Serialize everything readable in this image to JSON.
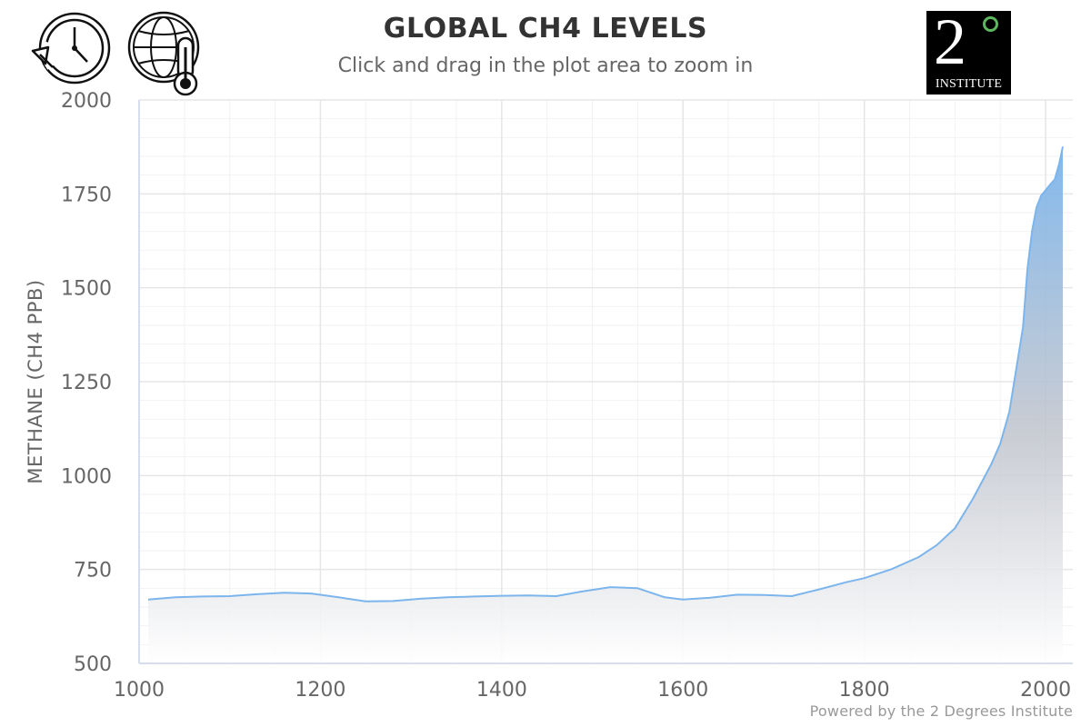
{
  "header": {
    "title": "GLOBAL CH4 LEVELS",
    "subtitle": "Click and drag in the plot area to zoom in"
  },
  "icons": {
    "history": "history-clock-icon",
    "climate": "globe-thermometer-icon"
  },
  "logo": {
    "digit": "2",
    "word": "INSTITUTE"
  },
  "footer": {
    "credit": "Powered by the 2 Degrees Institute"
  },
  "colors": {
    "line": "#7cb5ec",
    "grid_major": "#e6e6e6",
    "grid_minor": "#f2f2f2",
    "axis_text": "#666666",
    "fill_top": "#7cb5ec",
    "fill_bottom": "#ffffff"
  },
  "chart_data": {
    "type": "area",
    "title": "GLOBAL CH4 LEVELS",
    "subtitle": "Click and drag in the plot area to zoom in",
    "xlabel": "",
    "ylabel": "METHANE (CH4 PPB)",
    "xlim": [
      1000,
      2030
    ],
    "ylim": [
      500,
      2000
    ],
    "xticks": [
      1000,
      1200,
      1400,
      1600,
      1800,
      2000
    ],
    "yticks": [
      500,
      750,
      1000,
      1250,
      1500,
      1750,
      2000
    ],
    "grid": true,
    "legend": "none",
    "series": [
      {
        "x": [
          1010,
          1040,
          1070,
          1100,
          1130,
          1160,
          1190,
          1220,
          1250,
          1280,
          1310,
          1340,
          1370,
          1400,
          1430,
          1460,
          1490,
          1520,
          1550,
          1580,
          1600,
          1630,
          1660,
          1690,
          1720,
          1750,
          1780,
          1800,
          1830,
          1860,
          1880,
          1900,
          1920,
          1940,
          1950,
          1960,
          1970,
          1975,
          1980,
          1985,
          1990,
          1995,
          2000,
          2005,
          2010,
          2015,
          2019
        ],
        "y": [
          670,
          676,
          678,
          679,
          684,
          688,
          686,
          676,
          665,
          666,
          672,
          676,
          678,
          680,
          681,
          679,
          692,
          703,
          700,
          676,
          670,
          675,
          683,
          682,
          679,
          697,
          716,
          727,
          751,
          783,
          815,
          860,
          939,
          1030,
          1085,
          1170,
          1320,
          1395,
          1550,
          1650,
          1714,
          1745,
          1760,
          1775,
          1788,
          1830,
          1876
        ]
      }
    ]
  }
}
